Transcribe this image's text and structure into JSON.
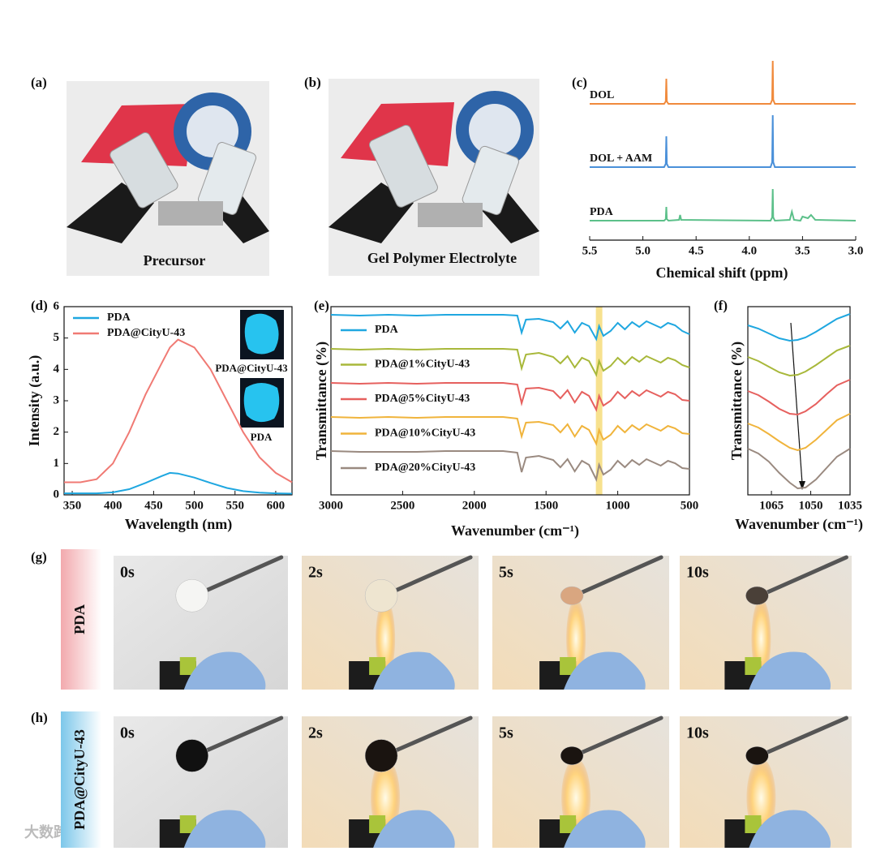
{
  "panels": {
    "a": {
      "label": "(a)",
      "caption": "Precursor"
    },
    "b": {
      "label": "(b)",
      "caption": "Gel Polymer Electrolyte"
    },
    "g": {
      "label": "(g)",
      "sample": "PDA",
      "times": [
        "0s",
        "2s",
        "5s",
        "10s"
      ]
    },
    "h": {
      "label": "(h)",
      "sample": "PDA@CityU-43",
      "times": [
        "0s",
        "2s",
        "5s",
        "10s"
      ]
    }
  },
  "watermark": "大数跨境",
  "chart_data": [
    {
      "type": "line",
      "panel_label": "(c)",
      "x_label": "Chemical shift (ppm)",
      "xlim": [
        5.5,
        3
      ],
      "xticks": [
        5.5,
        {
          "value": 5,
          "label": "5.0"
        },
        4.5,
        {
          "value": 4,
          "label": "4.0"
        },
        3.5,
        {
          "value": 3,
          "label": "3.0"
        }
      ],
      "x": [
        5.5,
        4.8,
        4.785,
        4.78,
        4.775,
        4.76,
        4.66,
        4.65,
        4.64,
        3.8,
        3.785,
        3.78,
        3.775,
        3.76,
        3.62,
        3.6,
        3.58,
        3.52,
        3.5,
        3.45,
        3.42,
        3.38,
        3
      ],
      "series": [
        {
          "name": "DOL",
          "color": "#f08a3c",
          "values": [
            0,
            0,
            3,
            31,
            3,
            0,
            0,
            0,
            0,
            0,
            5,
            53,
            5,
            0,
            0,
            0,
            0,
            0,
            0,
            0,
            0,
            0,
            0
          ]
        },
        {
          "name": "DOL + AAM",
          "color": "#4a90d9",
          "values": [
            0,
            0,
            4,
            38,
            4,
            0,
            0,
            0,
            0,
            0,
            6,
            64,
            6,
            0,
            0,
            0,
            0,
            0,
            0,
            0,
            0,
            0,
            0
          ]
        },
        {
          "name": "PDA",
          "color": "#5cc08a",
          "values": [
            0,
            0,
            2,
            17,
            2,
            0,
            1,
            7,
            1,
            0,
            4,
            39,
            4,
            0,
            1,
            11,
            1,
            0,
            5,
            3,
            7,
            1,
            0
          ]
        }
      ]
    },
    {
      "type": "line",
      "panel_label": "(d)",
      "x_label": "Wavelength (nm)",
      "y_label": "Intensity (a.u.)",
      "xlim": [
        340,
        620
      ],
      "xticks": [
        350,
        400,
        450,
        500,
        550,
        600
      ],
      "ylim": [
        0,
        6
      ],
      "yticks": [
        0,
        1,
        2,
        3,
        4,
        5,
        6
      ],
      "legend": "upper left",
      "inset_labels": [
        "PDA@CityU-43",
        "PDA"
      ],
      "x": [
        340,
        360,
        380,
        400,
        420,
        440,
        460,
        470,
        480,
        500,
        520,
        540,
        560,
        580,
        600,
        620
      ],
      "series": [
        {
          "name": "PDA",
          "color": "#1fa7e0",
          "values": [
            0.05,
            0.05,
            0.05,
            0.08,
            0.18,
            0.38,
            0.6,
            0.7,
            0.68,
            0.55,
            0.38,
            0.22,
            0.12,
            0.07,
            0.05,
            0.04
          ]
        },
        {
          "name": "PDA@CityU-43",
          "color": "#f07a74",
          "values": [
            0.4,
            0.4,
            0.5,
            1.0,
            2.0,
            3.2,
            4.2,
            4.7,
            4.95,
            4.7,
            4.0,
            3.0,
            2.0,
            1.2,
            0.7,
            0.4
          ]
        }
      ]
    },
    {
      "type": "line",
      "panel_label": "(e)",
      "x_label": "Wavenumber (cm⁻¹)",
      "y_label": "Transmittance (%)",
      "xlim": [
        3000,
        500
      ],
      "xticks": [
        3000,
        2500,
        2000,
        1500,
        1000,
        500
      ],
      "highlight_x": 1130,
      "x": [
        3000,
        2800,
        2600,
        2400,
        2200,
        2000,
        1800,
        1700,
        1670,
        1640,
        1550,
        1450,
        1400,
        1350,
        1300,
        1250,
        1200,
        1150,
        1130,
        1100,
        1050,
        1000,
        950,
        900,
        850,
        800,
        750,
        700,
        650,
        600,
        550,
        500
      ],
      "series": [
        {
          "name": "PDA",
          "color": "#1fa7e0",
          "values": [
            0,
            -1,
            0,
            -1,
            0,
            0,
            0,
            -1,
            -22,
            -6,
            -5,
            -9,
            -17,
            -8,
            -22,
            -10,
            -14,
            -30,
            -14,
            -26,
            -20,
            -10,
            -18,
            -9,
            -15,
            -8,
            -12,
            -16,
            -10,
            -13,
            -20,
            -24
          ]
        },
        {
          "name": "PDA@1%CityU-43",
          "color": "#a8b83a",
          "values": [
            0,
            -1,
            0,
            -1,
            0,
            0,
            0,
            -1,
            -24,
            -7,
            -5,
            -10,
            -18,
            -9,
            -23,
            -11,
            -15,
            -32,
            -15,
            -27,
            -21,
            -11,
            -19,
            -10,
            -16,
            -9,
            -13,
            -17,
            -11,
            -14,
            -20,
            -23
          ]
        },
        {
          "name": "PDA@5%CityU-43",
          "color": "#e6605e",
          "values": [
            0,
            -1,
            0,
            -1,
            0,
            0,
            0,
            -2,
            -25,
            -7,
            -6,
            -10,
            -19,
            -9,
            -24,
            -11,
            -16,
            -33,
            -16,
            -28,
            -22,
            -11,
            -19,
            -10,
            -16,
            -9,
            -13,
            -17,
            -11,
            -14,
            -21,
            -22
          ]
        },
        {
          "name": "PDA@10%CityU-43",
          "color": "#f0b43c",
          "values": [
            0,
            -1,
            0,
            -1,
            0,
            0,
            0,
            -2,
            -24,
            -7,
            -6,
            -10,
            -19,
            -9,
            -24,
            -11,
            -16,
            -33,
            -16,
            -28,
            -22,
            -11,
            -19,
            -10,
            -16,
            -9,
            -13,
            -17,
            -11,
            -14,
            -20,
            -21
          ]
        },
        {
          "name": "PDA@20%CityU-43",
          "color": "#9a8a80",
          "values": [
            0,
            -1,
            -1,
            -1,
            0,
            0,
            0,
            -2,
            -26,
            -8,
            -6,
            -11,
            -20,
            -10,
            -25,
            -12,
            -17,
            -35,
            -17,
            -29,
            -23,
            -12,
            -20,
            -11,
            -17,
            -10,
            -14,
            -18,
            -12,
            -15,
            -21,
            -22
          ]
        }
      ]
    },
    {
      "type": "line",
      "panel_label": "(f)",
      "x_label": "Wavenumber (cm⁻¹)",
      "y_label": "Transmittance (%)",
      "xlim": [
        1074,
        1035
      ],
      "xticks": [
        1065,
        1050,
        1035
      ],
      "x": [
        1074,
        1070,
        1066,
        1062,
        1058,
        1055,
        1052,
        1048,
        1044,
        1040,
        1035
      ],
      "series": [
        {
          "color": "#1fa7e0",
          "values": [
            -14,
            -18,
            -24,
            -30,
            -33,
            -32,
            -29,
            -22,
            -14,
            -6,
            0
          ]
        },
        {
          "color": "#a8b83a",
          "values": [
            -14,
            -19,
            -26,
            -33,
            -37,
            -36,
            -32,
            -24,
            -15,
            -6,
            0
          ]
        },
        {
          "color": "#e6605e",
          "values": [
            -14,
            -19,
            -27,
            -36,
            -42,
            -43,
            -39,
            -30,
            -18,
            -7,
            0
          ]
        },
        {
          "color": "#f0b43c",
          "values": [
            -12,
            -17,
            -25,
            -34,
            -42,
            -45,
            -42,
            -32,
            -20,
            -8,
            0
          ]
        },
        {
          "color": "#9a8a80",
          "values": [
            0,
            -6,
            -16,
            -30,
            -42,
            -49,
            -48,
            -38,
            -24,
            -10,
            0
          ]
        }
      ]
    }
  ]
}
